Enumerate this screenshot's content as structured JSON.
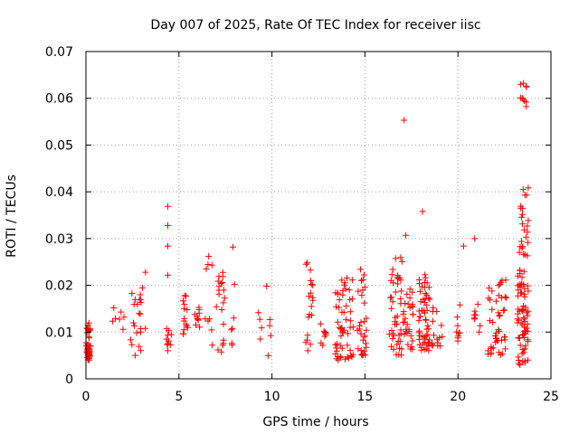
{
  "chart_data": {
    "type": "scatter",
    "title": "Day 007 of 2025, Rate Of TEC Index for receiver iisc",
    "xlabel": "GPS time / hours",
    "ylabel": "ROTI / TECUs",
    "xlim": [
      0,
      25
    ],
    "ylim": [
      0,
      0.07
    ],
    "xticks": [
      0,
      5,
      10,
      15,
      20,
      25
    ],
    "xtick_labels": [
      "0",
      "5",
      "10",
      "15",
      "20",
      "25"
    ],
    "yticks": [
      0,
      0.01,
      0.02,
      0.03,
      0.04,
      0.05,
      0.06,
      0.07
    ],
    "ytick_labels": [
      "0",
      "0.01",
      "0.02",
      "0.03",
      "0.04",
      "0.05",
      "0.06",
      "0.07"
    ],
    "grid": true,
    "marker": "+",
    "colors": {
      "marker": "#ff0000",
      "grid": "#a0a0a0",
      "axis": "#000000"
    },
    "clusters": [
      {
        "x_range": [
          0.0,
          0.25
        ],
        "count": 40,
        "y_range": [
          0.004,
          0.012
        ]
      },
      {
        "x_range": [
          1.4,
          1.6
        ],
        "count": 3,
        "y_range": [
          0.01,
          0.0155
        ]
      },
      {
        "x_range": [
          1.8,
          2.1
        ],
        "count": 4,
        "y_range": [
          0.008,
          0.0165
        ]
      },
      {
        "x_range": [
          2.4,
          3.2
        ],
        "count": 22,
        "y_range": [
          0.005,
          0.0195
        ]
      },
      {
        "x_range": [
          4.3,
          4.6
        ],
        "count": 10,
        "y_range": [
          0.006,
          0.0115
        ]
      },
      {
        "x_range": [
          5.2,
          5.5
        ],
        "count": 14,
        "y_range": [
          0.009,
          0.018
        ]
      },
      {
        "x_range": [
          5.8,
          6.2
        ],
        "count": 10,
        "y_range": [
          0.011,
          0.018
        ]
      },
      {
        "x_range": [
          6.4,
          6.8
        ],
        "count": 8,
        "y_range": [
          0.007,
          0.026
        ]
      },
      {
        "x_range": [
          7.0,
          7.5
        ],
        "count": 20,
        "y_range": [
          0.005,
          0.023
        ]
      },
      {
        "x_range": [
          7.8,
          8.1
        ],
        "count": 6,
        "y_range": [
          0.007,
          0.022
        ]
      },
      {
        "x_range": [
          9.2,
          9.5
        ],
        "count": 4,
        "y_range": [
          0.008,
          0.0165
        ]
      },
      {
        "x_range": [
          9.7,
          10.0
        ],
        "count": 5,
        "y_range": [
          0.004,
          0.02
        ]
      },
      {
        "x_range": [
          11.8,
          12.2
        ],
        "count": 18,
        "y_range": [
          0.006,
          0.025
        ]
      },
      {
        "x_range": [
          12.6,
          12.9
        ],
        "count": 8,
        "y_range": [
          0.007,
          0.015
        ]
      },
      {
        "x_range": [
          13.4,
          14.4
        ],
        "count": 55,
        "y_range": [
          0.004,
          0.022
        ]
      },
      {
        "x_range": [
          14.6,
          15.1
        ],
        "count": 30,
        "y_range": [
          0.005,
          0.024
        ]
      },
      {
        "x_range": [
          16.3,
          17.0
        ],
        "count": 45,
        "y_range": [
          0.005,
          0.026
        ]
      },
      {
        "x_range": [
          17.0,
          17.6
        ],
        "count": 30,
        "y_range": [
          0.006,
          0.02
        ]
      },
      {
        "x_range": [
          17.9,
          18.5
        ],
        "count": 55,
        "y_range": [
          0.006,
          0.023
        ]
      },
      {
        "x_range": [
          18.6,
          19.2
        ],
        "count": 15,
        "y_range": [
          0.007,
          0.018
        ]
      },
      {
        "x_range": [
          19.9,
          20.1
        ],
        "count": 8,
        "y_range": [
          0.008,
          0.014
        ]
      },
      {
        "x_range": [
          20.8,
          21.2
        ],
        "count": 8,
        "y_range": [
          0.009,
          0.017
        ]
      },
      {
        "x_range": [
          21.6,
          22.6
        ],
        "count": 45,
        "y_range": [
          0.005,
          0.022
        ]
      },
      {
        "x_range": [
          23.2,
          23.8
        ],
        "count": 70,
        "y_range": [
          0.003,
          0.024
        ]
      },
      {
        "x_range": [
          23.2,
          23.8
        ],
        "count": 22,
        "y_range": [
          0.026,
          0.042
        ]
      },
      {
        "x_range": [
          23.3,
          23.7
        ],
        "count": 10,
        "y_range": [
          0.058,
          0.064
        ]
      }
    ],
    "outliers": [
      {
        "x": 4.4,
        "y": 0.0369
      },
      {
        "x": 4.4,
        "y": 0.0328
      },
      {
        "x": 4.4,
        "y": 0.0284
      },
      {
        "x": 4.4,
        "y": 0.0222
      },
      {
        "x": 3.2,
        "y": 0.0228
      },
      {
        "x": 6.6,
        "y": 0.0262
      },
      {
        "x": 7.9,
        "y": 0.0282
      },
      {
        "x": 11.9,
        "y": 0.0248
      },
      {
        "x": 17.1,
        "y": 0.0553
      },
      {
        "x": 17.2,
        "y": 0.0307
      },
      {
        "x": 18.1,
        "y": 0.0358
      },
      {
        "x": 20.3,
        "y": 0.0284
      },
      {
        "x": 20.9,
        "y": 0.03
      },
      {
        "x": 20.1,
        "y": 0.0158
      },
      {
        "x": 23.5,
        "y": 0.0405
      },
      {
        "x": 23.6,
        "y": 0.0393
      }
    ]
  }
}
